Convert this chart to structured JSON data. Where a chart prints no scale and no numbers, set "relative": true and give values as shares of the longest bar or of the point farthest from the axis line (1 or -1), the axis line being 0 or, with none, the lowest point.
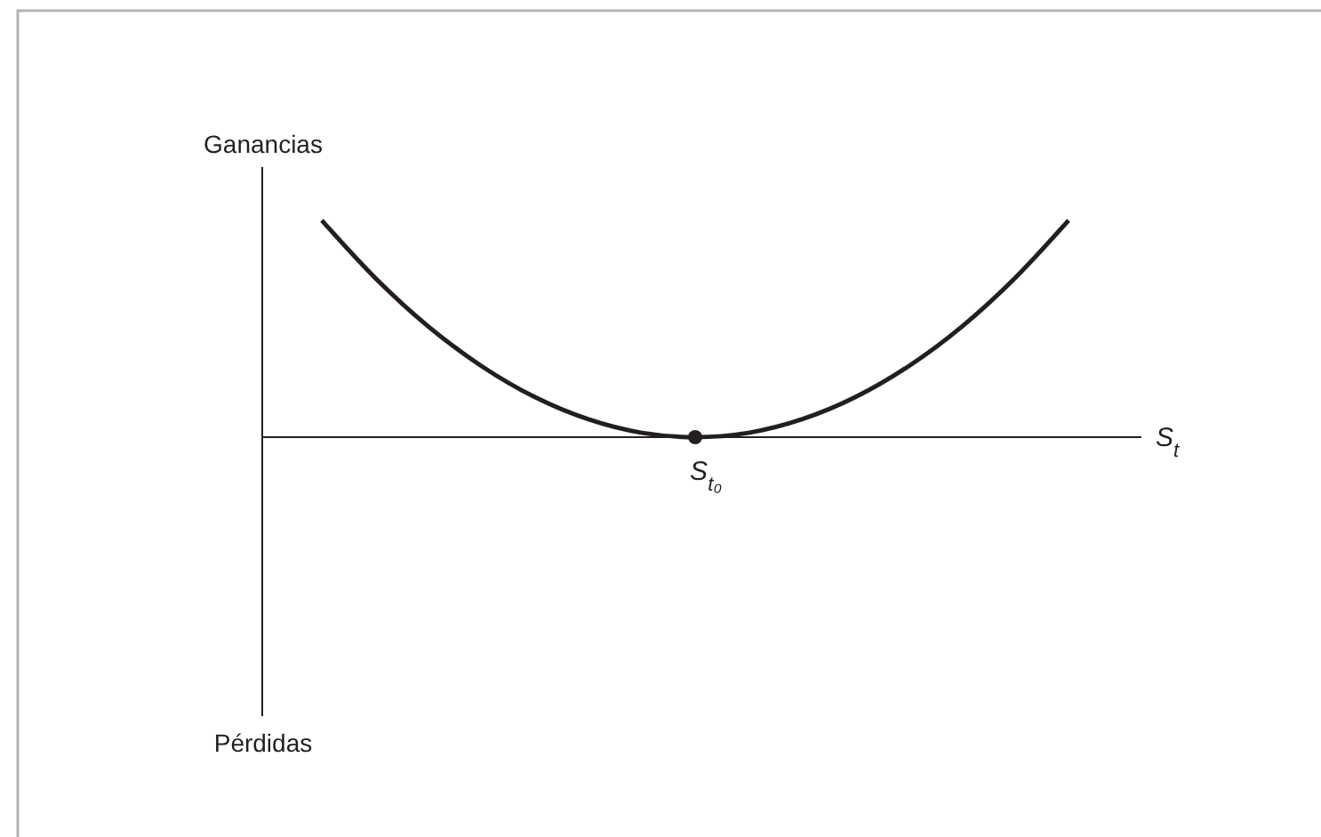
{
  "chart_data": {
    "type": "line",
    "relative": true,
    "ylabel": "Ganancias",
    "xlabel": "S$_{t}$",
    "annotations": [
      "Pérdidas",
      {
        "text": "S$_{t₀}$",
        "y": 0
      }
    ],
    "categories": [
      null,
      null,
      null,
      null,
      null,
      null,
      null,
      null,
      null,
      null,
      null,
      null,
      null,
      null,
      null
    ],
    "series": [
      {
        "color": "#231f20",
        "values": [
          1,
          0.735,
          0.51,
          0.327,
          0.184,
          0.082,
          0.02,
          0,
          0.02,
          0.082,
          0.184,
          0.327,
          0.51,
          0.735,
          1
        ]
      }
    ],
    "marker": "none",
    "line_style": "solid",
    "grid": false,
    "legend": false
  }
}
